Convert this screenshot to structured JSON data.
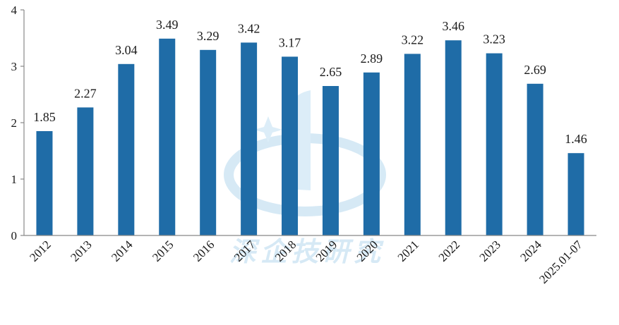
{
  "chart_data": {
    "type": "bar",
    "title": "",
    "xlabel": "",
    "ylabel": "",
    "categories": [
      "2012",
      "2013",
      "2014",
      "2015",
      "2016",
      "2017",
      "2018",
      "2019",
      "2020",
      "2021",
      "2022",
      "2023",
      "2024",
      "2025.01-07"
    ],
    "values": [
      1.85,
      2.27,
      3.04,
      3.49,
      3.29,
      3.42,
      3.17,
      2.65,
      2.89,
      3.22,
      3.46,
      3.23,
      2.69,
      1.46
    ],
    "value_labels": [
      "1.85",
      "2.27",
      "3.04",
      "3.49",
      "3.29",
      "3.42",
      "3.17",
      "2.65",
      "2.89",
      "3.22",
      "3.46",
      "3.23",
      "2.69",
      "1.46"
    ],
    "ylim": [
      0,
      4
    ],
    "yticks": [
      "0",
      "1",
      "2",
      "3",
      "4"
    ],
    "grid": false,
    "legend": "none",
    "bar_color": "#1f6ca7",
    "axis_color": "#888888"
  },
  "watermark": {
    "text": "深企技研究",
    "color": "#cfe6f4"
  }
}
